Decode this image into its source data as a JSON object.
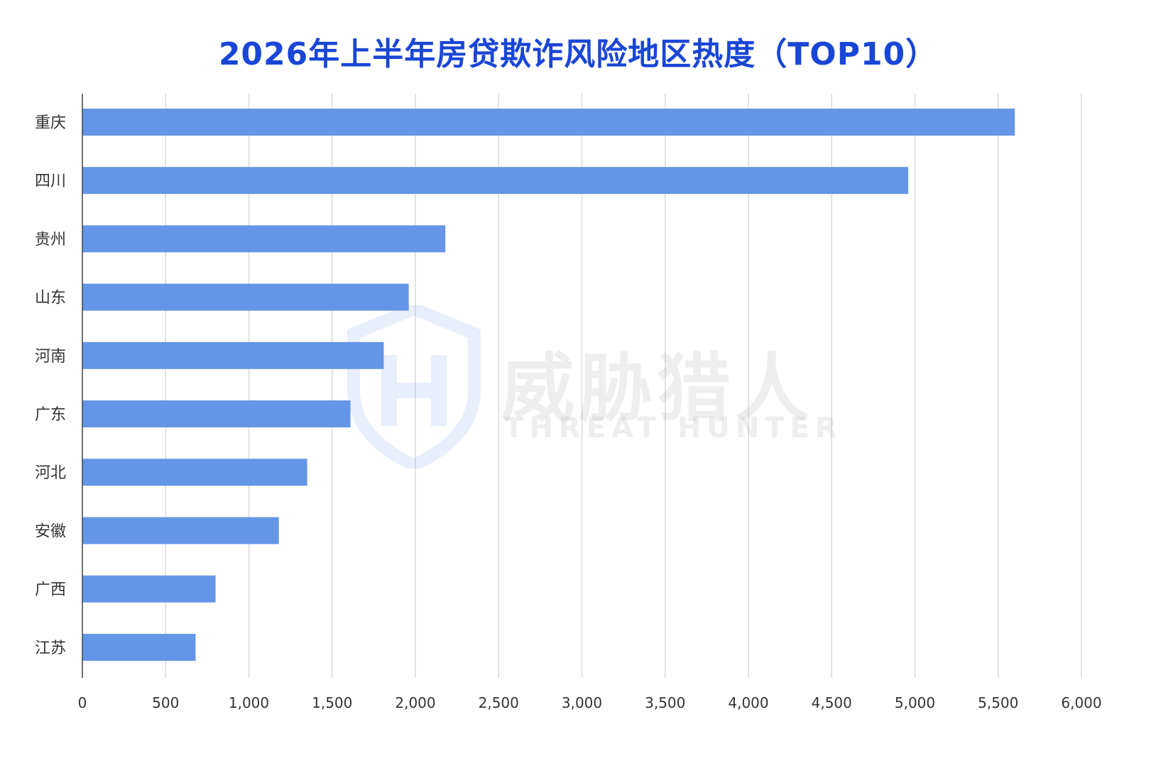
{
  "chart_data": {
    "type": "bar",
    "orientation": "horizontal",
    "title": "2026年上半年房贷欺诈风险地区热度（TOP10）",
    "categories": [
      "重庆",
      "四川",
      "贵州",
      "山东",
      "河南",
      "广东",
      "河北",
      "安徽",
      "广西",
      "江苏"
    ],
    "values": [
      5600,
      4960,
      2180,
      1960,
      1810,
      1610,
      1350,
      1180,
      800,
      680
    ],
    "xlim": [
      0,
      6000
    ],
    "xticks": [
      "0",
      "500",
      "1,000",
      "1,500",
      "2,000",
      "2,500",
      "3,000",
      "3,500",
      "4,000",
      "4,500",
      "5,000",
      "5,500",
      "6,000"
    ],
    "grid": true,
    "bar_color": "#6495e6",
    "title_color": "#1a46d6"
  },
  "watermark": {
    "cn": "威胁猎人",
    "en": "THREAT HUNTER"
  }
}
